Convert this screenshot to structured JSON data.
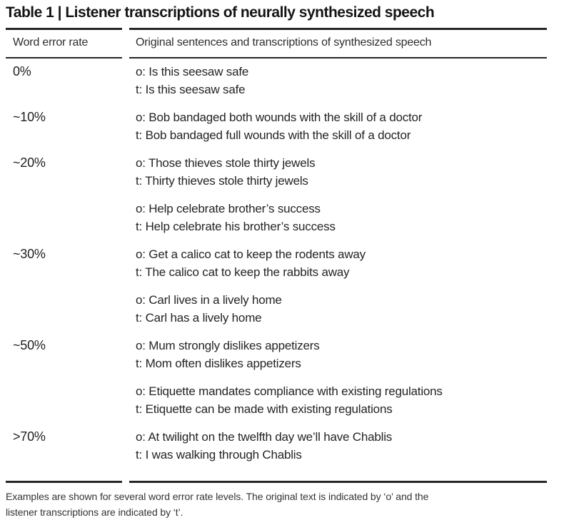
{
  "title": "Table 1 | Listener transcriptions of neurally synthesized speech",
  "columns": {
    "wer": "Word error rate",
    "sentences": "Original sentences and transcriptions of synthesized speech"
  },
  "rows": [
    {
      "wer": "0%",
      "pairs": [
        {
          "o": "o: Is this seesaw safe",
          "t": "t: Is this seesaw safe"
        }
      ]
    },
    {
      "wer": "~10%",
      "pairs": [
        {
          "o": "o: Bob bandaged both wounds with the skill of a doctor",
          "t": "t: Bob bandaged full wounds with the skill of a doctor"
        }
      ]
    },
    {
      "wer": "~20%",
      "pairs": [
        {
          "o": "o: Those thieves stole thirty jewels",
          "t": "t: Thirty thieves stole thirty jewels"
        },
        {
          "o": "o: Help celebrate brother’s success",
          "t": "t: Help celebrate his brother’s success"
        }
      ]
    },
    {
      "wer": "~30%",
      "pairs": [
        {
          "o": "o: Get a calico cat to keep the rodents away",
          "t": "t: The calico cat to keep the rabbits away"
        },
        {
          "o": "o: Carl lives in a lively home",
          "t": "t: Carl has a lively home"
        }
      ]
    },
    {
      "wer": "~50%",
      "pairs": [
        {
          "o": "o: Mum strongly dislikes appetizers",
          "t": "t: Mom often dislikes appetizers"
        },
        {
          "o": "o: Etiquette mandates compliance with existing regulations",
          "t": "t: Etiquette can be made with existing regulations"
        }
      ]
    },
    {
      "wer": ">70%",
      "pairs": [
        {
          "o": "o: At twilight on the twelfth day we’ll have Chablis",
          "t": "t: I was walking through Chablis"
        }
      ]
    }
  ],
  "footnote": {
    "line1": "Examples are shown for several word error rate levels. The original text is indicated by ‘o’ and the",
    "line2": "listener transcriptions are indicated by ‘t’."
  },
  "colors": {
    "text": "#1f1f1f",
    "rule": "#262626",
    "background": "#ffffff"
  }
}
